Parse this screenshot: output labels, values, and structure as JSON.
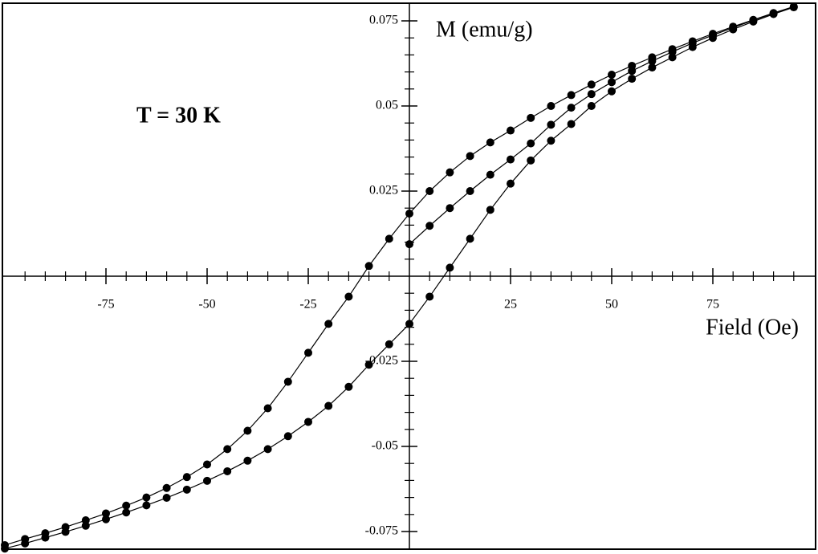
{
  "chart_data": {
    "type": "line",
    "annotation": "T = 30 K",
    "x_label": "Field (Oe)",
    "y_label": "M (emu/g)",
    "x": [
      -100,
      -95,
      -90,
      -85,
      -80,
      -75,
      -70,
      -65,
      -60,
      -55,
      -50,
      -45,
      -40,
      -35,
      -30,
      -25,
      -20,
      -15,
      -10,
      -5,
      0,
      5,
      10,
      15,
      20,
      25,
      30,
      35,
      40,
      45,
      50,
      55,
      60,
      65,
      70,
      75,
      80,
      85,
      90,
      95
    ],
    "series": [
      {
        "color": "#000000",
        "values": [
          -0.079,
          -0.0772,
          -0.0755,
          -0.0737,
          -0.0717,
          -0.0697,
          -0.0674,
          -0.065,
          -0.0622,
          -0.059,
          -0.0553,
          -0.0508,
          -0.0454,
          -0.0388,
          -0.031,
          -0.0225,
          -0.014,
          -0.006,
          0.003,
          0.011,
          0.0184,
          0.025,
          0.0305,
          0.0353,
          0.0393,
          0.0428,
          0.0465,
          0.05,
          0.0532,
          0.0563,
          0.0592,
          0.0618,
          0.0643,
          0.0667,
          0.069,
          0.0712,
          0.0733,
          0.0753,
          0.0773,
          0.0792
        ]
      },
      {
        "color": "#000000",
        "values": [
          -0.08,
          -0.0785,
          -0.0768,
          -0.0751,
          -0.0733,
          -0.0714,
          -0.0694,
          -0.0673,
          -0.0651,
          -0.0627,
          -0.0601,
          -0.0573,
          -0.0542,
          -0.0508,
          -0.047,
          -0.0428,
          -0.0381,
          -0.0325,
          -0.026,
          -0.02,
          -0.014,
          -0.006,
          0.0025,
          0.011,
          0.0195,
          0.0272,
          0.034,
          0.0398,
          0.0447,
          0.05,
          0.0543,
          0.058,
          0.0613,
          0.0643,
          0.0673,
          0.07,
          0.0725,
          0.0748,
          0.077,
          0.079
        ]
      },
      {
        "color": "#000000",
        "values": [
          null,
          null,
          null,
          null,
          null,
          null,
          null,
          null,
          null,
          null,
          null,
          null,
          null,
          null,
          null,
          null,
          null,
          null,
          null,
          null,
          0.0094,
          0.0148,
          0.02,
          0.025,
          0.0298,
          0.0343,
          0.039,
          0.0445,
          0.0495,
          0.0535,
          0.057,
          0.0603,
          0.0632,
          0.0659,
          0.0685,
          0.0708,
          0.073,
          0.0752,
          0.0772,
          0.0791
        ]
      }
    ],
    "xlim": [
      -100,
      100
    ],
    "ylim": [
      -0.08,
      0.08
    ],
    "xticks": [
      -75,
      -50,
      -25,
      25,
      50,
      75
    ],
    "yticks": [
      -0.075,
      -0.05,
      -0.025,
      0.025,
      0.05,
      0.075
    ],
    "xminorticks": [
      -95,
      -90,
      -85,
      -80,
      -70,
      -65,
      -60,
      -55,
      -45,
      -40,
      -35,
      -30,
      -20,
      -15,
      -10,
      -5,
      5,
      10,
      15,
      20,
      30,
      35,
      40,
      45,
      55,
      60,
      65,
      70,
      80,
      85,
      90,
      95
    ],
    "yminorticks": [
      -0.07,
      -0.065,
      -0.06,
      -0.055,
      -0.045,
      -0.04,
      -0.035,
      -0.03,
      -0.02,
      -0.015,
      -0.01,
      -0.005,
      0.005,
      0.01,
      0.015,
      0.02,
      0.03,
      0.035,
      0.04,
      0.045,
      0.055,
      0.06,
      0.065,
      0.07
    ]
  }
}
